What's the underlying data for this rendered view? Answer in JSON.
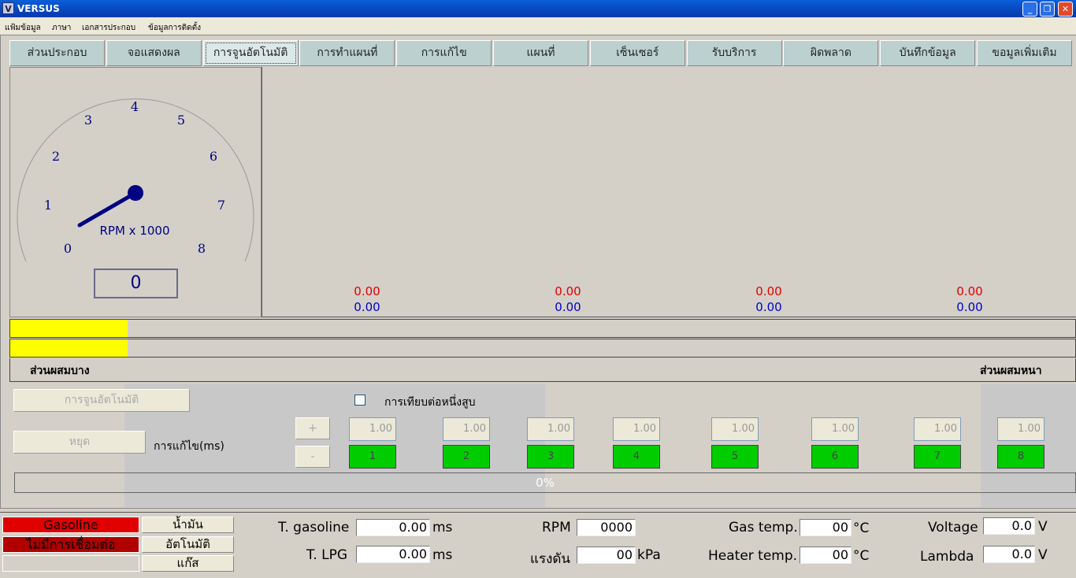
{
  "window": {
    "title": "VERSUS",
    "logo": "V"
  },
  "menu": [
    "แฟ้มข้อมูล",
    "ภาษา",
    "เอกสารประกอบ",
    "ข้อมูลการติดตั้ง"
  ],
  "tabs": [
    "ส่วนประกอบ",
    "จอแสดงผล",
    "การจูนอัตโนมัติ",
    "การทำแผนที่",
    "การแก้ไข",
    "แผนที่",
    "เซ็นเซอร์",
    "รับบริการ",
    "ผิดพลาด",
    "บันทึกข้อมูล",
    "ขอมูลเพิ่มเติม"
  ],
  "active_tab": 2,
  "gauge": {
    "label": "RPM x 1000",
    "ticks": [
      "0",
      "1",
      "2",
      "3",
      "4",
      "5",
      "6",
      "7",
      "8"
    ],
    "value": "0",
    "rpm": 0
  },
  "chart_values": [
    {
      "red": "0.00",
      "blue": "0.00"
    },
    {
      "red": "0.00",
      "blue": "0.00"
    },
    {
      "red": "0.00",
      "blue": "0.00"
    },
    {
      "red": "0.00",
      "blue": "0.00"
    }
  ],
  "mixture": {
    "lean_label": "ส่วนผสมบาง",
    "rich_label": "ส่วนผสมหนา",
    "bar1_fraction": 0.11,
    "bar2_fraction": 0.11
  },
  "autotune": {
    "start_label": "การจูนอัตโนมัติ",
    "stop_label": "หยุด",
    "correction_label": "การแก้ไข(ms)",
    "compare_label": "การเทียบต่อหนึ่งสูบ",
    "plus": "+",
    "minus": "-",
    "cylinders": [
      {
        "n": "1",
        "v": "1.00"
      },
      {
        "n": "2",
        "v": "1.00"
      },
      {
        "n": "3",
        "v": "1.00"
      },
      {
        "n": "4",
        "v": "1.00"
      },
      {
        "n": "5",
        "v": "1.00"
      },
      {
        "n": "6",
        "v": "1.00"
      },
      {
        "n": "7",
        "v": "1.00"
      },
      {
        "n": "8",
        "v": "1.00"
      }
    ],
    "progress": "0%"
  },
  "status": {
    "fuel": "Gasoline",
    "connection": "ไม่มีการเชื่อมต่อ",
    "btn_petrol": "น้ำมัน",
    "btn_auto": "อัตโนมัติ",
    "btn_gas": "แก๊ส",
    "t_gasoline_label": "T. gasoline",
    "t_gasoline": "0.00",
    "t_lpg_label": "T. LPG",
    "t_lpg": "0.00",
    "ms": "ms",
    "rpm_label": "RPM",
    "rpm": "0000",
    "pressure_label": "แรงดัน",
    "pressure": "00",
    "kpa": "kPa",
    "gas_temp_label": "Gas temp.",
    "gas_temp": "00",
    "heater_temp_label": "Heater temp.",
    "heater_temp": "00",
    "degc": "°C",
    "voltage_label": "Voltage",
    "voltage": "0.0",
    "lambda_label": "Lambda",
    "lambda": "0.0",
    "v": "V"
  },
  "colors": {
    "title": "#0846c0",
    "fuel_red": "#e00000",
    "conn_red": "#b00000",
    "yellow": "#ffff00",
    "green": "#00cc00"
  }
}
